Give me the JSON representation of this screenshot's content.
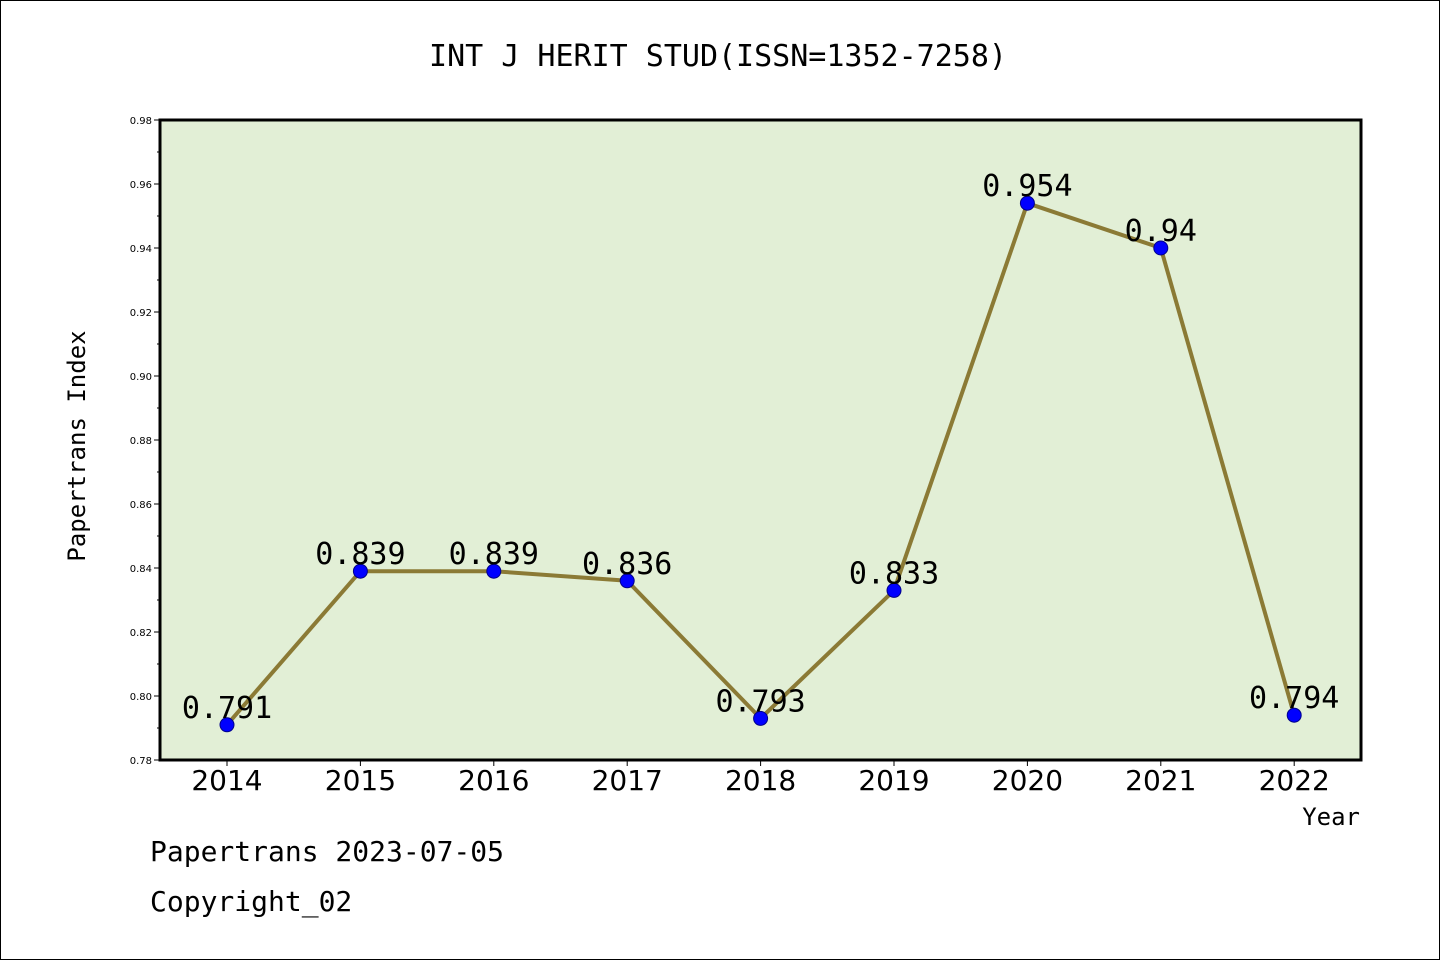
{
  "chart_data": {
    "type": "line",
    "title": "INT J HERIT STUD(ISSN=1352-7258)",
    "xlabel": "Year",
    "ylabel": "Papertrans Index",
    "categories": [
      "2014",
      "2015",
      "2016",
      "2017",
      "2018",
      "2019",
      "2020",
      "2021",
      "2022"
    ],
    "series": [
      {
        "values": [
          0.791,
          0.839,
          0.839,
          0.836,
          0.793,
          0.833,
          0.954,
          0.94,
          0.794
        ],
        "labels": [
          "0.791",
          "0.839",
          "0.839",
          "0.836",
          "0.793",
          "0.833",
          "0.954",
          "0.94",
          "0.794"
        ]
      }
    ],
    "ylim": [
      0.78,
      0.98
    ],
    "yticks": [
      "0.78",
      "0.80",
      "0.82",
      "0.84",
      "0.86",
      "0.88",
      "0.90",
      "0.92",
      "0.94",
      "0.96",
      "0.98"
    ],
    "grid": false,
    "legend": "none",
    "colors": {
      "plot_background": "#e2efd6",
      "line": "#8b7a35",
      "marker": "#0000ff"
    }
  },
  "footer": {
    "date_text": "Papertrans 2023-07-05",
    "copyright_text": "Copyright_02"
  }
}
